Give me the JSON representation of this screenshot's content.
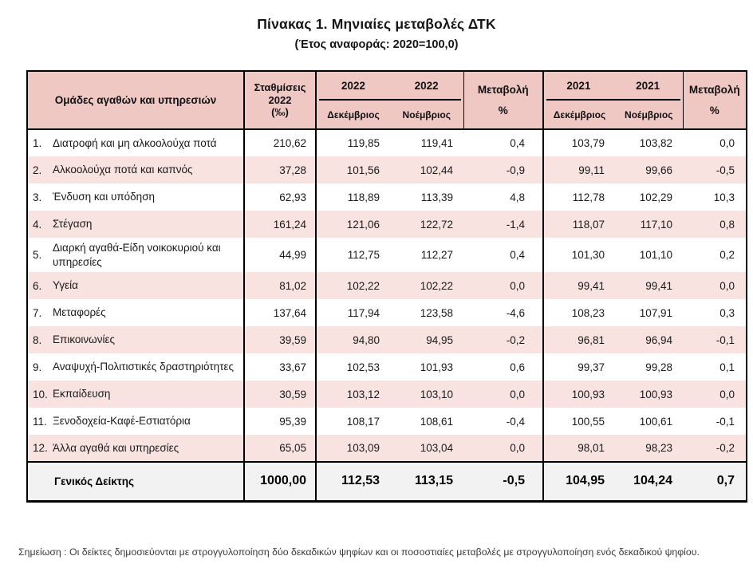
{
  "title": "Πίνακας 1. Μηνιαίες μεταβολές ΔΤΚ",
  "subtitle": "(Έτος αναφοράς: 2020=100,0)",
  "table": {
    "header": {
      "groups_label": "Ομάδες αγαθών και υπηρεσιών",
      "weights_line1": "Σταθμίσεις",
      "weights_line2": "2022",
      "weights_line3": "(‰)",
      "year_2022": "2022",
      "year_2021": "2021",
      "month_dec": "Δεκέμβριος",
      "month_nov": "Νοέμβριος",
      "change_line1": "Μεταβολή",
      "change_line2": "%"
    },
    "rows": [
      {
        "num": "1.",
        "label": "Διατροφή και μη αλκοολούχα ποτά",
        "weight": "210,62",
        "dec2022": "119,85",
        "nov2022": "119,41",
        "change2022": "0,4",
        "dec2021": "103,79",
        "nov2021": "103,82",
        "change2021": "0,0"
      },
      {
        "num": "2.",
        "label": "Αλκοολούχα ποτά και καπνός",
        "weight": "37,28",
        "dec2022": "101,56",
        "nov2022": "102,44",
        "change2022": "-0,9",
        "dec2021": "99,11",
        "nov2021": "99,66",
        "change2021": "-0,5"
      },
      {
        "num": "3.",
        "label": "Ένδυση και υπόδηση",
        "weight": "62,93",
        "dec2022": "118,89",
        "nov2022": "113,39",
        "change2022": "4,8",
        "dec2021": "112,78",
        "nov2021": "102,29",
        "change2021": "10,3"
      },
      {
        "num": "4.",
        "label": "Στέγαση",
        "weight": "161,24",
        "dec2022": "121,06",
        "nov2022": "122,72",
        "change2022": "-1,4",
        "dec2021": "118,07",
        "nov2021": "117,10",
        "change2021": "0,8"
      },
      {
        "num": "5.",
        "label": "Διαρκή αγαθά-Είδη νοικοκυριού και υπηρεσίες",
        "weight": "44,99",
        "dec2022": "112,75",
        "nov2022": "112,27",
        "change2022": "0,4",
        "dec2021": "101,30",
        "nov2021": "101,10",
        "change2021": "0,2"
      },
      {
        "num": "6.",
        "label": "Υγεία",
        "weight": "81,02",
        "dec2022": "102,22",
        "nov2022": "102,22",
        "change2022": "0,0",
        "dec2021": "99,41",
        "nov2021": "99,41",
        "change2021": "0,0"
      },
      {
        "num": "7.",
        "label": "Μεταφορές",
        "weight": "137,64",
        "dec2022": "117,94",
        "nov2022": "123,58",
        "change2022": "-4,6",
        "dec2021": "108,23",
        "nov2021": "107,91",
        "change2021": "0,3"
      },
      {
        "num": "8.",
        "label": "Επικοινωνίες",
        "weight": "39,59",
        "dec2022": "94,80",
        "nov2022": "94,95",
        "change2022": "-0,2",
        "dec2021": "96,81",
        "nov2021": "96,94",
        "change2021": "-0,1"
      },
      {
        "num": "9.",
        "label": "Αναψυχή-Πολιτιστικές δραστηριότητες",
        "weight": "33,67",
        "dec2022": "102,53",
        "nov2022": "101,93",
        "change2022": "0,6",
        "dec2021": "99,37",
        "nov2021": "99,28",
        "change2021": "0,1"
      },
      {
        "num": "10.",
        "label": "Εκπαίδευση",
        "weight": "30,59",
        "dec2022": "103,12",
        "nov2022": "103,10",
        "change2022": "0,0",
        "dec2021": "100,93",
        "nov2021": "100,93",
        "change2021": "0,0"
      },
      {
        "num": "11.",
        "label": "Ξενοδοχεία-Καφέ-Εστιατόρια",
        "weight": "95,39",
        "dec2022": "108,17",
        "nov2022": "108,61",
        "change2022": "-0,4",
        "dec2021": "100,55",
        "nov2021": "100,61",
        "change2021": "-0,1"
      },
      {
        "num": "12.",
        "label": "Άλλα αγαθά και υπηρεσίες",
        "weight": "65,05",
        "dec2022": "103,09",
        "nov2022": "103,04",
        "change2022": "0,0",
        "dec2021": "98,01",
        "nov2021": "98,23",
        "change2021": "-0,2"
      }
    ],
    "total": {
      "label": "Γενικός Δείκτης",
      "weight": "1000,00",
      "dec2022": "112,53",
      "nov2022": "113,15",
      "change2022": "-0,5",
      "dec2021": "104,95",
      "nov2021": "104,24",
      "change2021": "0,7"
    }
  },
  "footnote": "Σημείωση :  Οι δείκτες δημοσιεύονται με στρογγυλοποίηση δύο δεκαδικών ψηφίων και οι ποσοστιαίες μεταβολές με στρογγυλοποίηση ενός δεκαδικού ψηφίου.",
  "colors": {
    "header_bg": "#EFC8C4",
    "row_alt_bg": "#F8E3E0",
    "total_row_bg": "#F2F2F2",
    "border": "#000000",
    "title_text": "#151515"
  }
}
